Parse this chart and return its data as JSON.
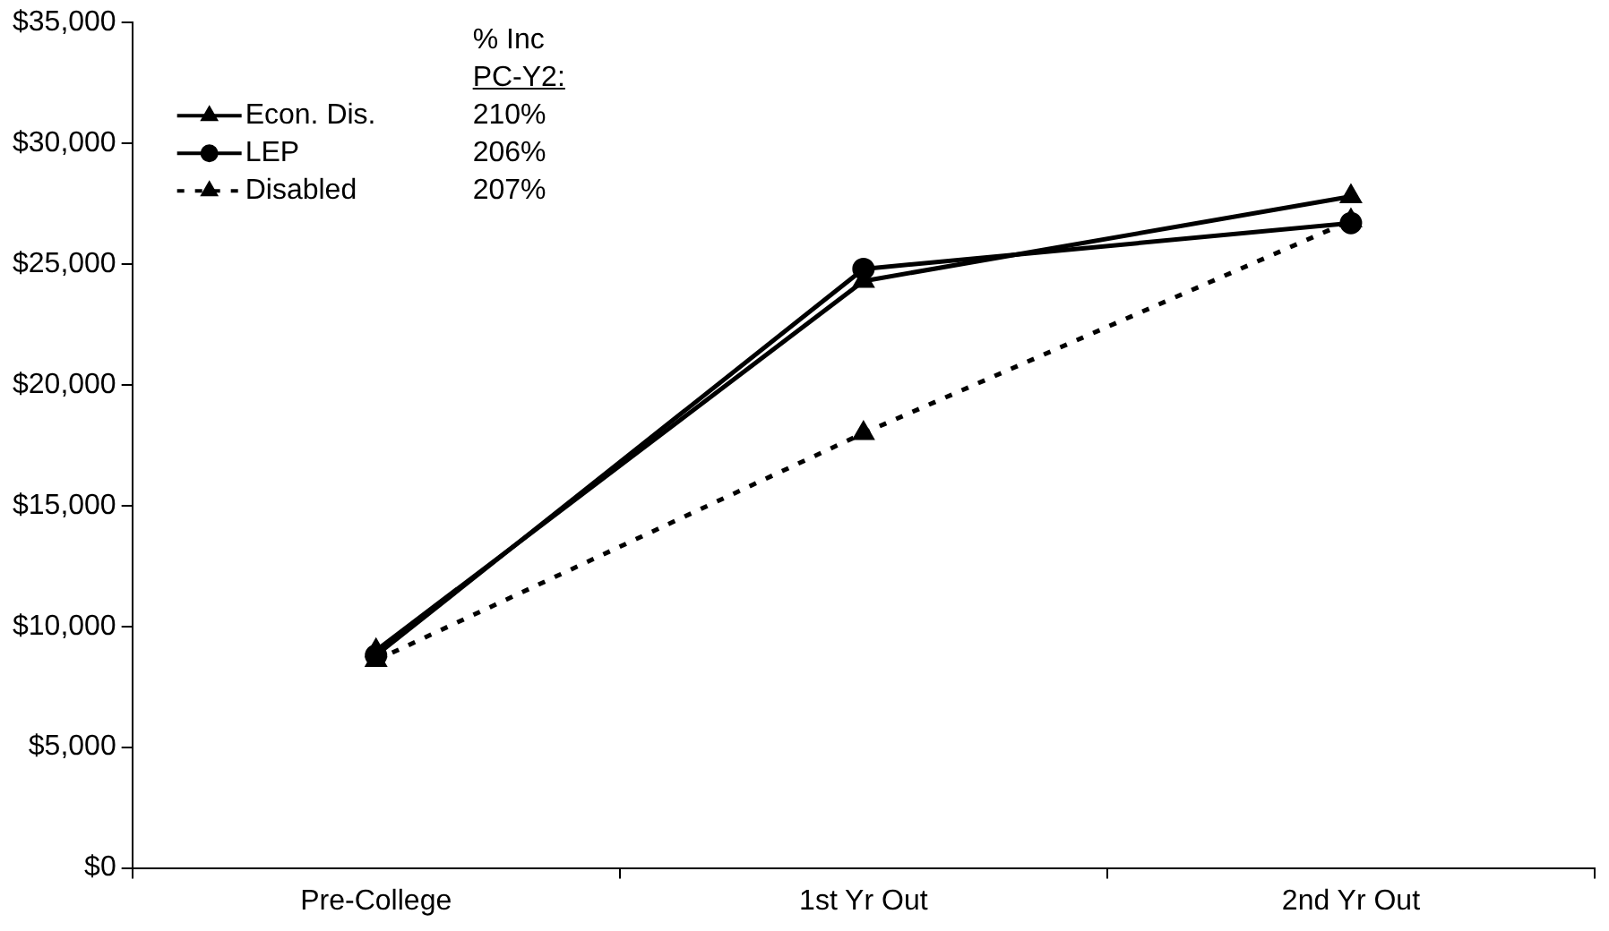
{
  "chart_data": {
    "type": "line",
    "categories": [
      "Pre-College",
      "1st Yr Out",
      "2nd Yr Out"
    ],
    "series": [
      {
        "name": "Econ. Dis.",
        "color": "#000000",
        "values": [
          9000,
          24300,
          27800
        ],
        "marker": "triangle",
        "line_style": "solid"
      },
      {
        "name": "LEP",
        "color": "#000000",
        "values": [
          8800,
          24800,
          26700
        ],
        "marker": "circle",
        "line_style": "solid"
      },
      {
        "name": "Disabled",
        "color": "#000000",
        "values": [
          8600,
          18000,
          26800
        ],
        "marker": "triangle",
        "line_style": "dashed"
      }
    ],
    "ylim": [
      0,
      35000
    ],
    "yticks": [
      {
        "value": 0,
        "label": "$0"
      },
      {
        "value": 5000,
        "label": "$5,000"
      },
      {
        "value": 10000,
        "label": "$10,000"
      },
      {
        "value": 15000,
        "label": "$15,000"
      },
      {
        "value": 20000,
        "label": "$20,000"
      },
      {
        "value": 25000,
        "label": "$25,000"
      },
      {
        "value": 30000,
        "label": "$30,000"
      },
      {
        "value": 35000,
        "label": "$35,000"
      }
    ],
    "grid": false,
    "legend": "top left",
    "annotations": [
      "% Inc",
      "PC-Y2:",
      "210%",
      "206%",
      "207%"
    ]
  }
}
